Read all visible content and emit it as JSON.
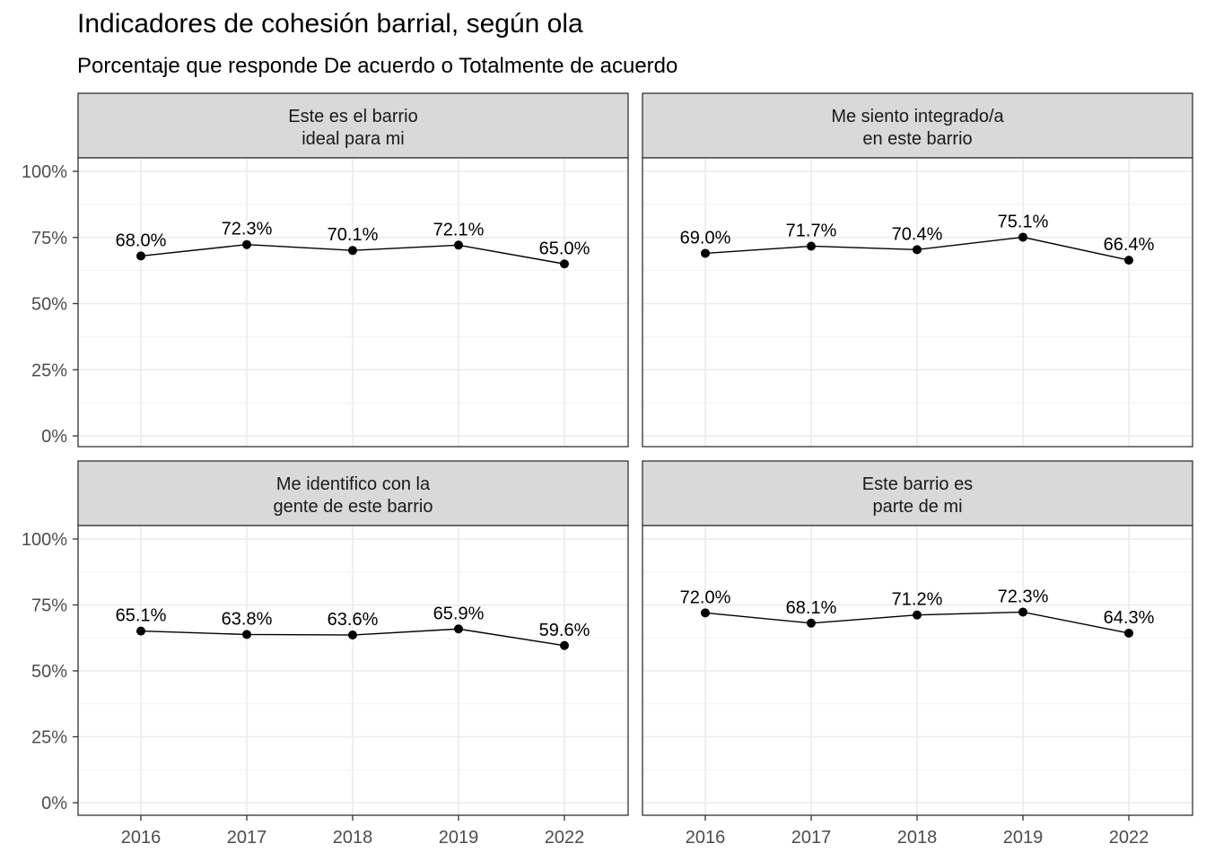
{
  "chart_data": {
    "type": "line",
    "title": "Indicadores de cohesión barrial, según ola",
    "subtitle": "Porcentaje que responde De acuerdo o Totalmente de acuerdo",
    "xlabel": "",
    "ylabel": "",
    "x": [
      "2016",
      "2017",
      "2018",
      "2019",
      "2022"
    ],
    "y_ticks": [
      "0%",
      "25%",
      "50%",
      "75%",
      "100%"
    ],
    "ylim": [
      0,
      1.04
    ],
    "grid": true,
    "legend": "none",
    "colors": {
      "strip_fill": "#d9d9d9",
      "line": "#000000",
      "grid": "#ebebeb",
      "border": "#333333"
    },
    "panels": [
      {
        "strip": [
          "Este es el barrio",
          "ideal para mi"
        ],
        "values": [
          0.68,
          0.723,
          0.701,
          0.721,
          0.65
        ],
        "labels": [
          "68.0%",
          "72.3%",
          "70.1%",
          "72.1%",
          "65.0%"
        ]
      },
      {
        "strip": [
          "Me siento integrado/a",
          "en este barrio"
        ],
        "values": [
          0.69,
          0.717,
          0.704,
          0.751,
          0.664
        ],
        "labels": [
          "69.0%",
          "71.7%",
          "70.4%",
          "75.1%",
          "66.4%"
        ]
      },
      {
        "strip": [
          "Me identifico con la",
          "gente de este barrio"
        ],
        "values": [
          0.651,
          0.638,
          0.636,
          0.659,
          0.596
        ],
        "labels": [
          "65.1%",
          "63.8%",
          "63.6%",
          "65.9%",
          "59.6%"
        ]
      },
      {
        "strip": [
          "Este barrio es",
          "parte de mi"
        ],
        "values": [
          0.72,
          0.681,
          0.712,
          0.723,
          0.643
        ],
        "labels": [
          "72.0%",
          "68.1%",
          "71.2%",
          "72.3%",
          "64.3%"
        ]
      }
    ]
  }
}
